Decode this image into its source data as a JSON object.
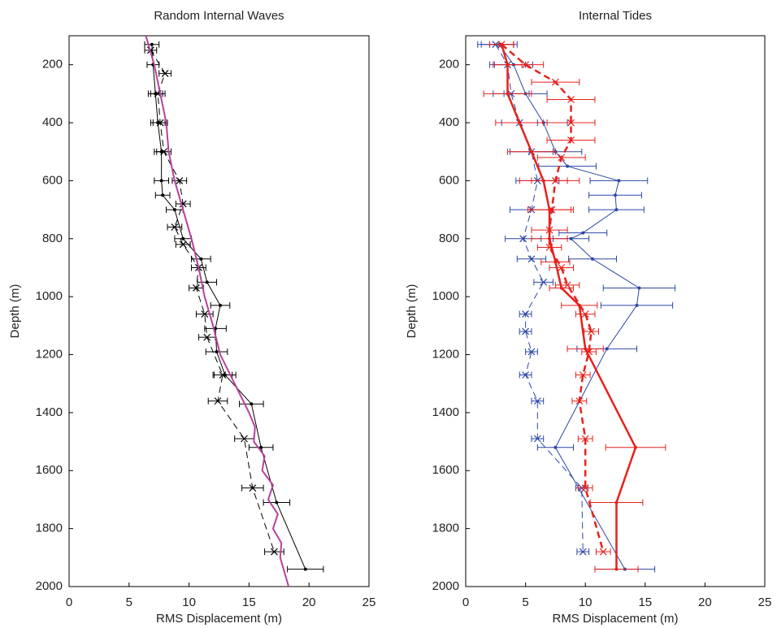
{
  "chart_data": [
    {
      "type": "line",
      "title": "Random Internal Waves",
      "xlabel": "RMS Displacement (m)",
      "ylabel": "Depth (m)",
      "xlim": [
        0,
        25
      ],
      "xticks": [
        0,
        5,
        10,
        15,
        20,
        25
      ],
      "ylim": [
        100,
        2000
      ],
      "yticks": [
        200,
        400,
        600,
        800,
        1000,
        1200,
        1400,
        1600,
        1800,
        2000
      ],
      "y_reversed": true,
      "series": [
        {
          "color": "#000000",
          "marker": "dot",
          "dashed": false,
          "width": 1,
          "y": [
            130,
            200,
            300,
            400,
            500,
            600,
            650,
            700,
            800,
            870,
            950,
            1030,
            1110,
            1190,
            1270,
            1370,
            1520,
            1710,
            1940
          ],
          "values": [
            6.9,
            7.0,
            7.2,
            7.4,
            7.7,
            7.7,
            7.8,
            8.8,
            9.5,
            11.0,
            11.5,
            12.6,
            12.2,
            12.3,
            13.0,
            15.2,
            16.0,
            17.3,
            19.7
          ],
          "errors": [
            0.6,
            0.5,
            0.6,
            0.6,
            0.6,
            0.6,
            0.6,
            0.7,
            0.7,
            0.8,
            0.8,
            0.8,
            0.9,
            0.9,
            0.9,
            1.0,
            1.0,
            1.1,
            1.5
          ]
        },
        {
          "color": "#000000",
          "marker": "x",
          "dashed": true,
          "width": 1,
          "y": [
            150,
            230,
            300,
            400,
            500,
            600,
            680,
            760,
            820,
            900,
            970,
            1060,
            1140,
            1270,
            1360,
            1490,
            1660,
            1880
          ],
          "values": [
            6.8,
            8.0,
            7.4,
            7.6,
            7.9,
            9.2,
            9.5,
            8.8,
            9.5,
            10.8,
            10.6,
            11.3,
            11.5,
            12.8,
            12.4,
            14.6,
            15.3,
            17.1
          ],
          "errors": [
            0.5,
            0.5,
            0.6,
            0.6,
            0.6,
            0.6,
            0.6,
            0.6,
            0.6,
            0.6,
            0.6,
            0.7,
            0.7,
            0.8,
            0.8,
            0.8,
            0.9,
            0.8
          ]
        },
        {
          "color": "#b8409d",
          "marker": "none",
          "dashed": false,
          "width": 2,
          "y": [
            100,
            200,
            300,
            400,
            500,
            600,
            700,
            800,
            900,
            1000,
            1100,
            1200,
            1300,
            1400,
            1450,
            1500,
            1550,
            1600,
            1650,
            1700,
            1750,
            1800,
            1850,
            1900,
            2000
          ],
          "values": [
            6.4,
            7.1,
            7.6,
            8.1,
            8.3,
            8.8,
            9.5,
            10.2,
            10.8,
            11.3,
            12.0,
            12.6,
            13.8,
            15.0,
            15.5,
            15.4,
            16.3,
            16.1,
            17.0,
            16.6,
            17.4,
            17.0,
            17.7,
            17.6,
            18.3
          ]
        }
      ]
    },
    {
      "type": "line",
      "title": "Internal Tides",
      "xlabel": "RMS Displacement (m)",
      "ylabel": "Depth (m)",
      "xlim": [
        0,
        25
      ],
      "xticks": [
        0,
        5,
        10,
        15,
        20,
        25
      ],
      "ylim": [
        100,
        2000
      ],
      "yticks": [
        200,
        400,
        600,
        800,
        1000,
        1200,
        1400,
        1600,
        1800,
        2000
      ],
      "y_reversed": true,
      "series": [
        {
          "color": "#2b47a6",
          "marker": "dot",
          "dashed": false,
          "width": 1,
          "y": [
            130,
            200,
            300,
            400,
            500,
            550,
            600,
            650,
            700,
            780,
            800,
            870,
            970,
            1030,
            1180,
            1520,
            1940
          ],
          "values": [
            2.8,
            4.0,
            5.0,
            6.5,
            7.5,
            8.5,
            12.8,
            12.5,
            12.6,
            9.8,
            8.8,
            10.6,
            14.5,
            14.3,
            11.8,
            7.5,
            13.3
          ],
          "errors": [
            1.5,
            1.6,
            1.8,
            2.0,
            2.2,
            2.4,
            2.4,
            2.2,
            2.3,
            2.0,
            1.5,
            2.0,
            3.0,
            3.0,
            2.5,
            1.5,
            2.5
          ]
        },
        {
          "color": "#2b47a6",
          "marker": "x",
          "dashed": true,
          "width": 1,
          "y": [
            130,
            200,
            300,
            400,
            500,
            600,
            700,
            800,
            870,
            950,
            1060,
            1120,
            1190,
            1270,
            1360,
            1490,
            1660,
            1880
          ],
          "values": [
            2.5,
            3.5,
            3.8,
            4.5,
            5.5,
            6.0,
            5.5,
            4.8,
            5.5,
            6.5,
            5.0,
            5.0,
            5.5,
            5.0,
            6.0,
            6.0,
            9.7,
            9.8
          ],
          "errors": [
            1.5,
            1.5,
            1.5,
            1.5,
            1.8,
            1.8,
            1.8,
            1.5,
            1.2,
            0.8,
            0.5,
            0.5,
            0.5,
            0.5,
            0.5,
            0.5,
            0.5,
            0.5
          ]
        },
        {
          "color": "#e8211b",
          "marker": "dot",
          "dashed": false,
          "width": 2.5,
          "y": [
            130,
            200,
            300,
            400,
            500,
            600,
            700,
            800,
            880,
            970,
            1030,
            1180,
            1520,
            1710,
            1940
          ],
          "values": [
            3.0,
            3.5,
            3.5,
            4.5,
            5.5,
            6.5,
            7.0,
            7.0,
            7.5,
            8.0,
            9.5,
            10.0,
            14.2,
            12.6,
            12.6
          ],
          "errors": [
            1.0,
            1.2,
            2.0,
            2.0,
            2.0,
            2.0,
            1.8,
            1.5,
            1.2,
            1.0,
            1.5,
            1.5,
            2.5,
            2.2,
            1.8
          ]
        },
        {
          "color": "#e8211b",
          "marker": "x",
          "dashed": true,
          "width": 2.5,
          "y": [
            130,
            200,
            260,
            320,
            400,
            460,
            520,
            600,
            700,
            770,
            830,
            900,
            960,
            1060,
            1120,
            1190,
            1270,
            1360,
            1490,
            1660,
            1880
          ],
          "values": [
            3.0,
            5.0,
            7.5,
            8.8,
            8.8,
            8.8,
            8.0,
            7.5,
            7.2,
            7.0,
            7.0,
            8.0,
            8.5,
            10.0,
            10.5,
            10.3,
            9.8,
            9.5,
            10.0,
            10.0,
            11.5
          ],
          "errors": [
            1.0,
            1.5,
            2.0,
            2.0,
            2.0,
            2.0,
            2.0,
            2.0,
            1.8,
            1.5,
            1.0,
            1.0,
            1.0,
            0.8,
            0.6,
            0.6,
            0.6,
            0.6,
            0.6,
            0.6,
            0.6
          ]
        }
      ]
    }
  ]
}
